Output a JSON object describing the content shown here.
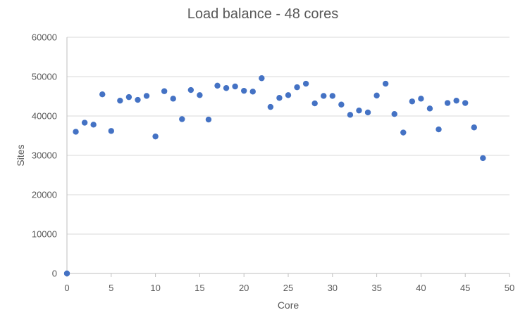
{
  "chart_data": {
    "type": "scatter",
    "title": "Load balance - 48 cores",
    "xlabel": "Core",
    "ylabel": "Sites",
    "xlim": [
      0,
      50
    ],
    "ylim": [
      0,
      60000
    ],
    "x_ticks": [
      "0",
      "5",
      "10",
      "15",
      "20",
      "25",
      "30",
      "35",
      "40",
      "45",
      "50"
    ],
    "y_ticks": [
      "0",
      "10000",
      "20000",
      "30000",
      "40000",
      "50000",
      "60000"
    ],
    "grid": "horizontal",
    "legend": "none",
    "marker_color": "#4472C4",
    "series": [
      {
        "x": [
          0,
          1,
          2,
          3,
          4,
          5,
          6,
          7,
          8,
          9,
          10,
          11,
          12,
          13,
          14,
          15,
          16,
          17,
          18,
          19,
          20,
          21,
          22,
          23,
          24,
          25,
          26,
          27,
          28,
          29,
          30,
          31,
          32,
          33,
          34,
          35,
          36,
          37,
          38,
          39,
          40,
          41,
          42,
          43,
          44,
          45,
          46,
          47
        ],
        "y": [
          0,
          36000,
          38300,
          37800,
          45500,
          36200,
          43900,
          44800,
          44100,
          45100,
          34800,
          46300,
          44400,
          39200,
          46600,
          45300,
          39100,
          47700,
          47100,
          47500,
          46400,
          46200,
          49600,
          42300,
          44600,
          45300,
          47300,
          48200,
          43200,
          45100,
          45100,
          42900,
          40300,
          41400,
          40900,
          45200,
          48200,
          40500,
          35800,
          43700,
          44400,
          41900,
          36600,
          43300,
          43900,
          43300,
          37100,
          29300
        ]
      }
    ]
  }
}
